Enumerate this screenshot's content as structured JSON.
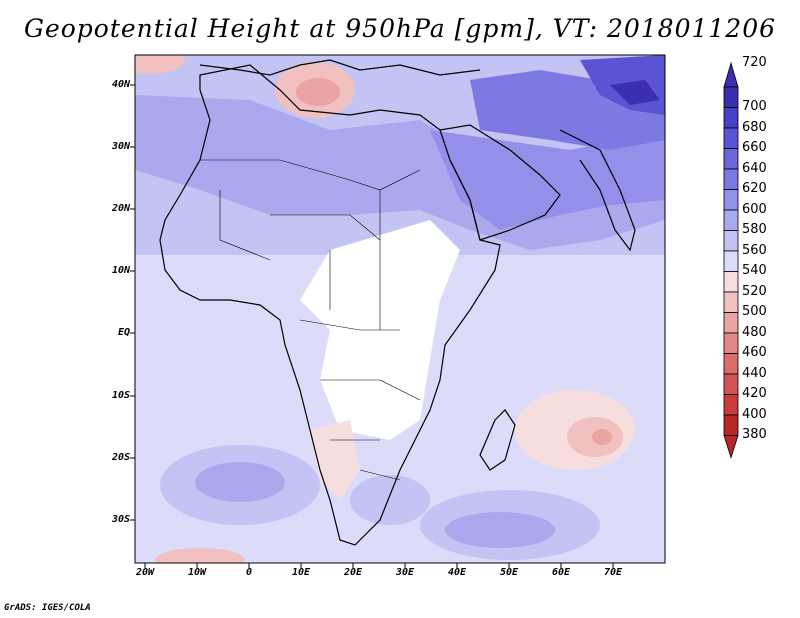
{
  "title": "Geopotential Height at 950hPa [gpm], VT: 2018011206",
  "footer": "GrADS: IGES/COLA",
  "lat_labels": [
    "40N",
    "30N",
    "20N",
    "10N",
    "EQ",
    "10S",
    "20S",
    "30S"
  ],
  "lon_labels": [
    "20W",
    "10W",
    "0",
    "10E",
    "20E",
    "30E",
    "40E",
    "50E",
    "60E",
    "70E"
  ],
  "colorbar": {
    "levels": [
      "720",
      "700",
      "680",
      "660",
      "640",
      "620",
      "600",
      "580",
      "560",
      "540",
      "520",
      "500",
      "480",
      "460",
      "440",
      "420",
      "400",
      "380"
    ],
    "colors": [
      "#3a2fb0",
      "#4a40c8",
      "#5a53d4",
      "#6a66dc",
      "#7c79e2",
      "#9290e8",
      "#aaa9ee",
      "#c3c3f4",
      "#dcdcfa",
      "#f6dede",
      "#f1c0c0",
      "#eba3a3",
      "#e38888",
      "#db6c6c",
      "#d25353",
      "#c83c3c",
      "#b82626"
    ]
  }
}
